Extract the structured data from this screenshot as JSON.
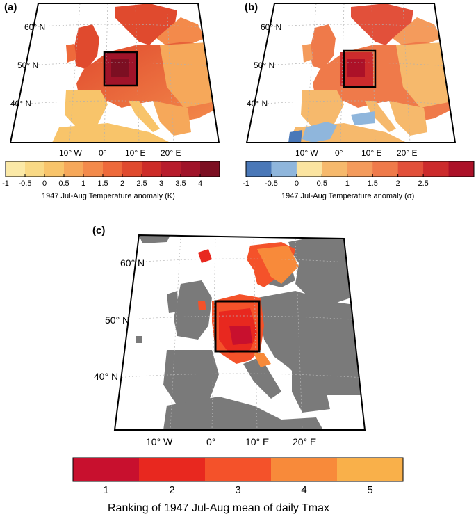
{
  "panels": {
    "a": {
      "label": "(a)",
      "lat_labels": [
        "60° N",
        "50° N",
        "40° N"
      ],
      "lon_labels": [
        "10° W",
        "0°",
        "10° E",
        "20° E"
      ],
      "colorbar": {
        "ticks": [
          "-1",
          "-0.5",
          "0",
          "0.5",
          "1",
          "1.5",
          "2",
          "2.5",
          "3",
          "3.5",
          "4"
        ],
        "colors": [
          "#fbe9a7",
          "#f9d985",
          "#f8c46a",
          "#f6a85a",
          "#f38a4b",
          "#ee6a3b",
          "#e04a2e",
          "#cd2c28",
          "#b81c2c",
          "#a01329",
          "#7c0f22"
        ],
        "caption": "1947 Jul-Aug Temperature anomaly (K)"
      }
    },
    "b": {
      "label": "(b)",
      "lat_labels": [
        "60° N",
        "50° N",
        "40° N"
      ],
      "lon_labels": [
        "10° W",
        "0°",
        "10° E",
        "20° E"
      ],
      "colorbar": {
        "ticks": [
          "-1",
          "-0.5",
          "0",
          "0.5",
          "1",
          "1.5",
          "2",
          "2.5"
        ],
        "colors": [
          "#4a78b8",
          "#8fb6dc",
          "#fbe4a0",
          "#f6b96c",
          "#f49b5c",
          "#ef7a4a",
          "#e2503a",
          "#cc2b2c",
          "#ac1128"
        ],
        "caption": "1947 Jul-Aug Temperature anomaly (σ)"
      }
    },
    "c": {
      "label": "(c)",
      "lat_labels": [
        "60° N",
        "50° N",
        "40° N"
      ],
      "lon_labels": [
        "10° W",
        "0°",
        "10° E",
        "20° E"
      ],
      "colorbar": {
        "ticks": [
          "1",
          "2",
          "3",
          "4",
          "5"
        ],
        "colors": [
          "#c8102e",
          "#e8281f",
          "#f4522a",
          "#f88a3a",
          "#f9b04a"
        ],
        "caption": "Ranking of 1947 Jul-Aug mean of daily Tmax"
      }
    }
  },
  "map_colors": {
    "land_gray": "#7a7a7a",
    "ocean": "#ffffff",
    "coast": "#111111",
    "grid": "#b0b0b0"
  }
}
